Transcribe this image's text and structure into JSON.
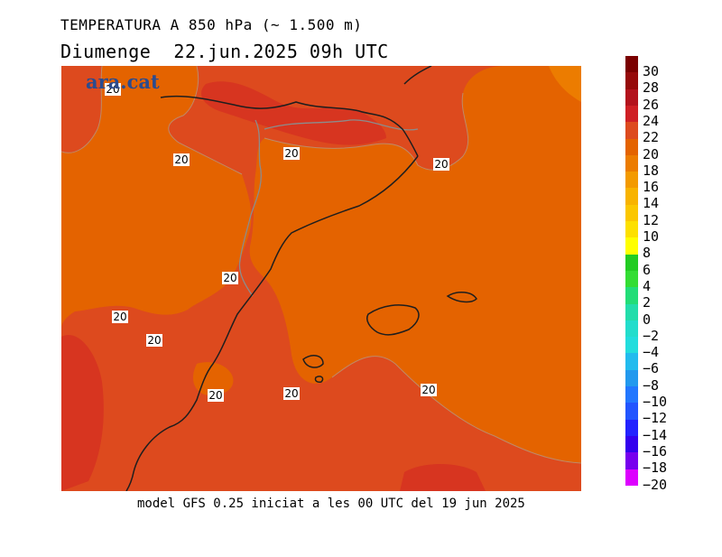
{
  "header": {
    "title": "TEMPERATURA A 850 hPa (~ 1.500 m)",
    "subtitle": "Diumenge  22.jun.2025 09h UTC"
  },
  "watermark": "ara.cat",
  "footer": "model GFS 0.25 iniciat a les 00 UTC del 19 jun 2025",
  "map": {
    "contour_labels": [
      "20",
      "20",
      "20",
      "20",
      "20",
      "20",
      "20",
      "20",
      "20",
      "20"
    ],
    "colors": {
      "t18_20": "#e46300",
      "t20_22": "#dd4a1e",
      "t22_24": "#d73520",
      "t24_26": "#cf1f24",
      "coast": "#1e1e1e",
      "border": "#8c8c8c"
    }
  },
  "legend": {
    "levels": [
      {
        "label": "30",
        "color": "#7a0000"
      },
      {
        "label": "28",
        "color": "#960a0a"
      },
      {
        "label": "26",
        "color": "#b3121c"
      },
      {
        "label": "24",
        "color": "#cf1f24"
      },
      {
        "label": "22",
        "color": "#dd4a1e"
      },
      {
        "label": "20",
        "color": "#e46300"
      },
      {
        "label": "18",
        "color": "#ec7c00"
      },
      {
        "label": "16",
        "color": "#f39a00"
      },
      {
        "label": "14",
        "color": "#f8b300"
      },
      {
        "label": "12",
        "color": "#fbc700"
      },
      {
        "label": "10",
        "color": "#fde000"
      },
      {
        "label": "8",
        "color": "#ffff00"
      },
      {
        "label": "6",
        "color": "#22cc22"
      },
      {
        "label": "4",
        "color": "#33dd33"
      },
      {
        "label": "2",
        "color": "#22dd77"
      },
      {
        "label": "0",
        "color": "#22ddaa"
      },
      {
        "label": "−2",
        "color": "#22ddcc"
      },
      {
        "label": "−4",
        "color": "#22dddd"
      },
      {
        "label": "−6",
        "color": "#22bbee"
      },
      {
        "label": "−8",
        "color": "#2299ee"
      },
      {
        "label": "−10",
        "color": "#2277ff"
      },
      {
        "label": "−12",
        "color": "#2255ff"
      },
      {
        "label": "−14",
        "color": "#2222ff"
      },
      {
        "label": "−16",
        "color": "#3300ee"
      },
      {
        "label": "−18",
        "color": "#7700ee"
      },
      {
        "label": "−20",
        "color": "#dd00ff"
      }
    ]
  }
}
